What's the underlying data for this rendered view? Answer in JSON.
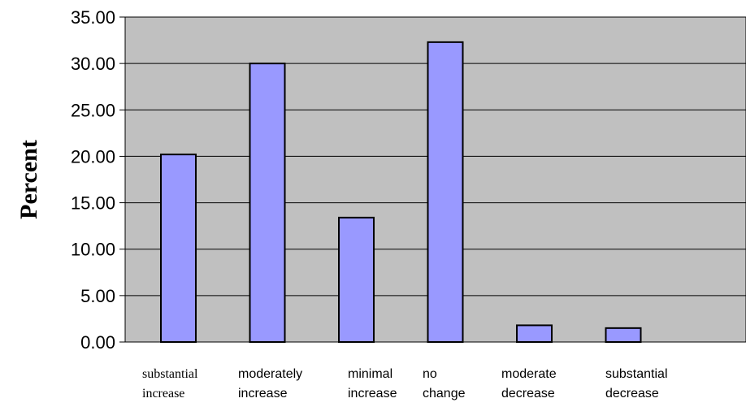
{
  "chart_data": {
    "type": "bar",
    "title": "",
    "xlabel": "",
    "ylabel": "Percent",
    "ylim": [
      0,
      35
    ],
    "yticks": [
      "0.00",
      "5.00",
      "10.00",
      "15.00",
      "20.00",
      "25.00",
      "30.00",
      "35.00"
    ],
    "grid": true,
    "legend": "none",
    "categories": [
      "substantial increase",
      "moderately increase",
      "minimal increase",
      "no change",
      "moderate decrease",
      "substantial decrease"
    ],
    "category_lines": [
      [
        "substantial",
        "increase"
      ],
      [
        "moderately",
        "increase"
      ],
      [
        "minimal",
        "increase"
      ],
      [
        "no",
        "change"
      ],
      [
        "moderate",
        "decrease"
      ],
      [
        "substantial",
        "decrease"
      ]
    ],
    "values": [
      20.2,
      30.0,
      13.4,
      32.3,
      1.8,
      1.5
    ],
    "colors": {
      "plot_background": "#c0c0c0",
      "bar_fill": "#9999ff",
      "bar_stroke": "#000000",
      "gridline": "#000000"
    }
  }
}
